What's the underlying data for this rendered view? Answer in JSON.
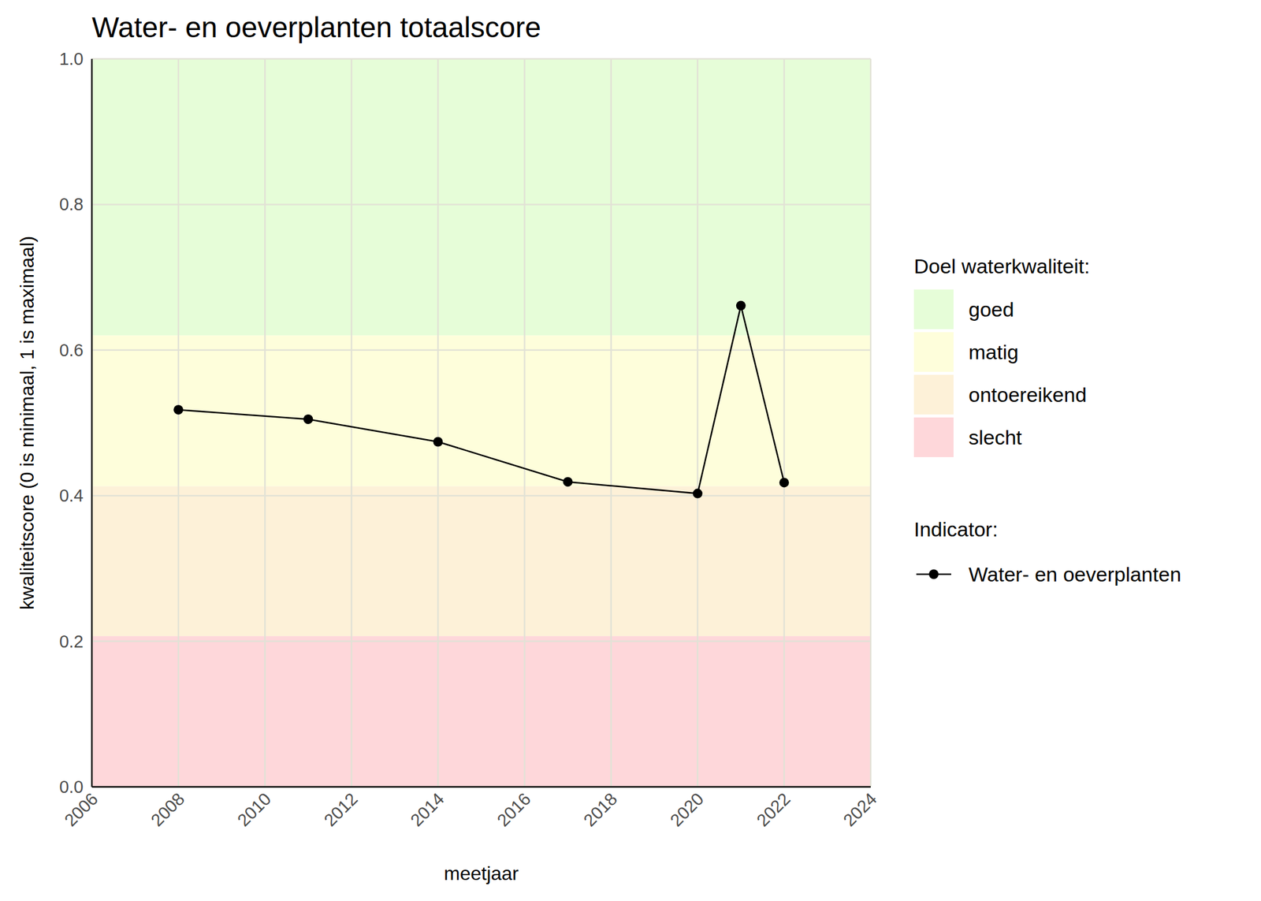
{
  "chart_data": {
    "type": "line",
    "title": "Water- en oeverplanten totaalscore",
    "x_label": "meetjaar",
    "y_label": "kwaliteitscore (0 is minimaal, 1 is maximaal)",
    "x": [
      2008,
      2011,
      2014,
      2017,
      2020,
      2021,
      2022
    ],
    "series": [
      {
        "name": "Water- en oeverplanten",
        "color": "#000000",
        "marker": "circle",
        "line_style": "solid",
        "values": [
          0.518,
          0.505,
          0.474,
          0.419,
          0.403,
          0.661,
          0.418
        ]
      }
    ],
    "xlim": [
      2006,
      2024
    ],
    "xticks": [
      2006,
      2008,
      2010,
      2012,
      2014,
      2016,
      2018,
      2020,
      2022,
      2024
    ],
    "ylim": [
      0,
      1
    ],
    "yticks": [
      {
        "value": 0,
        "label": "0.0"
      },
      0.2,
      0.4,
      0.6,
      0.8,
      {
        "value": 1,
        "label": "1.0"
      }
    ],
    "grid": true,
    "legend_title": "Indicator:",
    "bands_title": "Doel waterkwaliteit:",
    "bands": [
      {
        "name": "goed",
        "from": 0.62,
        "to": 1,
        "color": "#e6fdd8"
      },
      {
        "name": "matig",
        "from": 0.413,
        "to": 0.62,
        "color": "#fefedb"
      },
      {
        "name": "ontoereikend",
        "from": 0.207,
        "to": 0.413,
        "color": "#fdf1d8"
      },
      {
        "name": "slecht",
        "from": 0,
        "to": 0.207,
        "color": "#fed7da"
      }
    ]
  }
}
